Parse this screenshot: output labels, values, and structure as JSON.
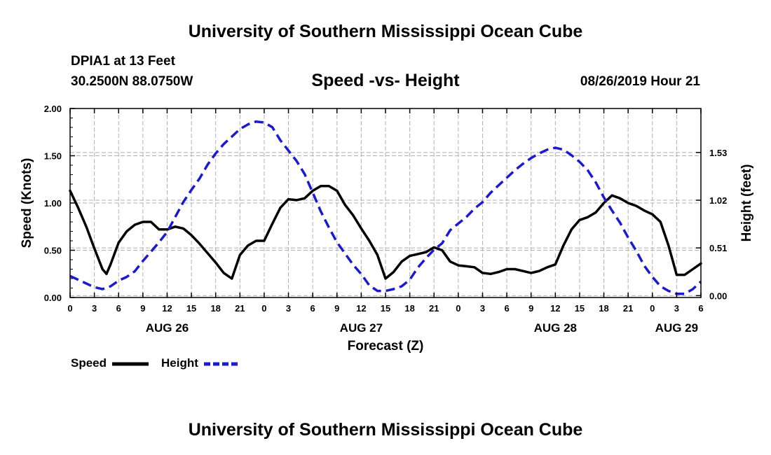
{
  "header": {
    "top_title": "University of Southern Mississippi Ocean Cube",
    "station": "DPIA1 at 13 Feet",
    "coords": "30.2500N 88.0750W",
    "subtitle": "Speed -vs- Height",
    "datetime": "08/26/2019 Hour 21",
    "bottom_title": "University of Southern Mississippi Ocean Cube"
  },
  "legend": {
    "speed_label": "Speed",
    "height_label": "Height"
  },
  "colors": {
    "speed": "#000000",
    "height": "#1a1ad0",
    "grid": "#b0b0b0"
  },
  "chart_data": {
    "type": "line",
    "title": "Speed -vs- Height",
    "xlabel": "Forecast (Z)",
    "ylabel": "Speed (Knots)",
    "y2label": "Height (feet)",
    "x_units": "hours from 00Z AUG 26",
    "xlim": [
      0,
      78
    ],
    "ylim": [
      0,
      2.0
    ],
    "y2lim": [
      -0.02,
      2.0
    ],
    "y_ticks": [
      "0.00",
      "0.50",
      "1.00",
      "1.50",
      "2.00"
    ],
    "y2_ticks": [
      "0.00",
      "0.51",
      "1.02",
      "1.53"
    ],
    "x_tick_labels": [
      "0",
      "3",
      "6",
      "9",
      "12",
      "15",
      "18",
      "21",
      "0",
      "3",
      "6",
      "9",
      "12",
      "15",
      "18",
      "21",
      "0",
      "3",
      "6",
      "9",
      "12",
      "15",
      "18",
      "21",
      "0",
      "3",
      "6"
    ],
    "day_labels": [
      {
        "hour": 12,
        "label": "AUG 26"
      },
      {
        "hour": 36,
        "label": "AUG 27"
      },
      {
        "hour": 60,
        "label": "AUG 28"
      },
      {
        "hour": 75,
        "label": "AUG 29"
      }
    ],
    "series": [
      {
        "name": "Speed",
        "axis": "left",
        "style": "solid",
        "x": [
          0,
          1,
          2,
          3,
          4,
          4.5,
          5,
          6,
          7,
          8,
          9,
          10,
          11,
          12,
          13,
          14,
          15,
          16,
          17,
          18,
          19,
          20,
          21,
          22,
          23,
          24,
          25,
          26,
          27,
          28,
          29,
          30,
          31,
          32,
          33,
          34,
          35,
          36,
          37,
          38,
          39,
          40,
          41,
          42,
          43,
          44,
          45,
          46,
          47,
          48,
          49,
          50,
          51,
          52,
          53,
          54,
          55,
          56,
          57,
          58,
          59,
          60,
          61,
          62,
          63,
          64,
          65,
          66,
          67,
          68,
          69,
          70,
          71,
          72,
          73,
          74,
          75,
          76,
          77,
          78
        ],
        "values": [
          1.13,
          0.95,
          0.75,
          0.52,
          0.3,
          0.25,
          0.35,
          0.58,
          0.7,
          0.77,
          0.8,
          0.8,
          0.72,
          0.72,
          0.75,
          0.73,
          0.66,
          0.57,
          0.47,
          0.37,
          0.26,
          0.2,
          0.45,
          0.55,
          0.6,
          0.6,
          0.78,
          0.95,
          1.04,
          1.03,
          1.05,
          1.13,
          1.18,
          1.18,
          1.13,
          0.98,
          0.87,
          0.73,
          0.6,
          0.45,
          0.2,
          0.27,
          0.38,
          0.44,
          0.46,
          0.48,
          0.53,
          0.5,
          0.38,
          0.34,
          0.33,
          0.32,
          0.26,
          0.25,
          0.27,
          0.3,
          0.3,
          0.28,
          0.26,
          0.28,
          0.32,
          0.35,
          0.55,
          0.72,
          0.82,
          0.85,
          0.9,
          1.0,
          1.08,
          1.05,
          1.0,
          0.97,
          0.92,
          0.88,
          0.8,
          0.55,
          0.24,
          0.24,
          0.3,
          0.36
        ]
      },
      {
        "name": "Height",
        "axis": "right",
        "style": "dashed",
        "x": [
          0,
          1,
          2,
          3,
          4,
          5,
          6,
          7,
          8,
          9,
          10,
          11,
          12,
          13,
          14,
          15,
          16,
          17,
          18,
          19,
          20,
          21,
          22,
          23,
          24,
          25,
          26,
          27,
          28,
          29,
          30,
          31,
          32,
          33,
          34,
          35,
          36,
          37,
          38,
          39,
          40,
          41,
          42,
          43,
          44,
          45,
          46,
          47,
          48,
          49,
          50,
          51,
          52,
          53,
          54,
          55,
          56,
          57,
          58,
          59,
          60,
          61,
          62,
          63,
          64,
          65,
          66,
          67,
          68,
          69,
          70,
          71,
          72,
          73,
          74,
          75,
          76,
          77,
          78
        ],
        "values": [
          0.21,
          0.17,
          0.13,
          0.09,
          0.07,
          0.1,
          0.16,
          0.2,
          0.26,
          0.37,
          0.47,
          0.57,
          0.68,
          0.84,
          1.0,
          1.13,
          1.25,
          1.4,
          1.52,
          1.62,
          1.7,
          1.78,
          1.83,
          1.86,
          1.85,
          1.8,
          1.66,
          1.55,
          1.44,
          1.3,
          1.1,
          0.9,
          0.73,
          0.57,
          0.45,
          0.33,
          0.23,
          0.11,
          0.05,
          0.05,
          0.07,
          0.1,
          0.17,
          0.3,
          0.4,
          0.49,
          0.56,
          0.7,
          0.77,
          0.84,
          0.93,
          1.0,
          1.1,
          1.18,
          1.26,
          1.34,
          1.41,
          1.47,
          1.52,
          1.56,
          1.58,
          1.56,
          1.5,
          1.43,
          1.34,
          1.21,
          1.05,
          0.91,
          0.78,
          0.62,
          0.48,
          0.32,
          0.2,
          0.1,
          0.05,
          0.02,
          0.02,
          0.07,
          0.15
        ]
      }
    ],
    "grid": true,
    "legend": "bottom-left"
  }
}
